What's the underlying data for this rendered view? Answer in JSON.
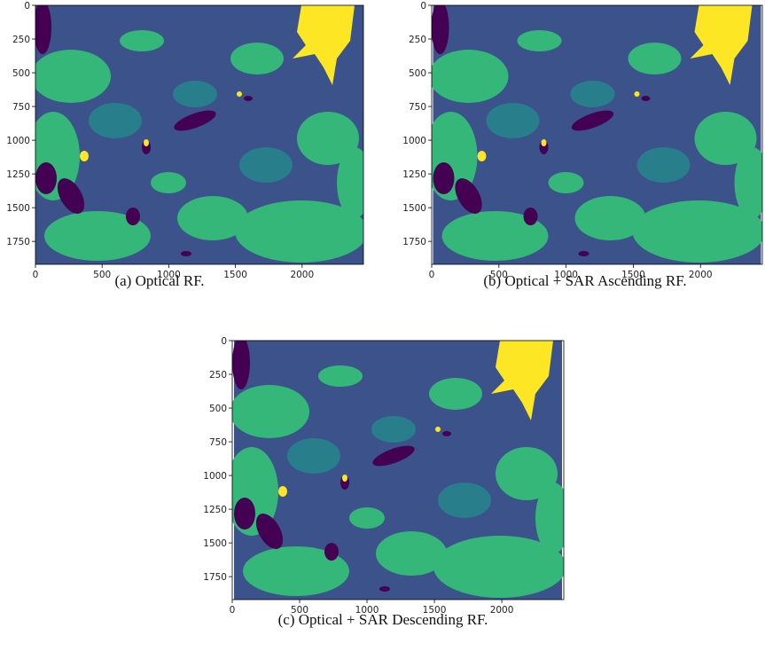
{
  "panels": [
    {
      "caption": "(a) Optical RF.",
      "xlim": [
        0,
        2460
      ],
      "ylim": [
        1920,
        0
      ],
      "xticks": [
        0,
        500,
        1000,
        1500,
        2000
      ],
      "yticks": [
        0,
        250,
        500,
        750,
        1000,
        1250,
        1500,
        1750
      ]
    },
    {
      "caption": "(b) Optical + SAR Ascending RF.",
      "xlim": [
        0,
        2460
      ],
      "ylim": [
        1920,
        0
      ],
      "xticks": [
        0,
        500,
        1000,
        1500,
        2000
      ],
      "yticks": [
        0,
        250,
        500,
        750,
        1000,
        1250,
        1500,
        1750
      ]
    },
    {
      "caption": "(c) Optical + SAR Descending RF.",
      "xlim": [
        0,
        2460
      ],
      "ylim": [
        1920,
        0
      ],
      "xticks": [
        0,
        500,
        1000,
        1500,
        2000
      ],
      "yticks": [
        0,
        250,
        500,
        750,
        1000,
        1250,
        1500,
        1750
      ]
    }
  ]
}
